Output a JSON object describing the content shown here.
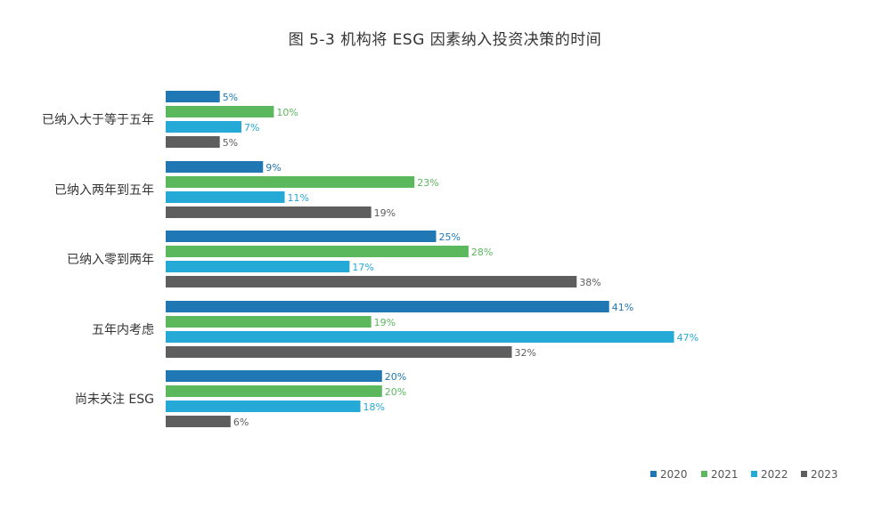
{
  "chart_data": {
    "type": "bar",
    "orientation": "horizontal",
    "title": "图 5-3 机构将 ESG 因素纳入投资决策的时间",
    "categories": [
      "已纳入大于等于五年",
      "已纳入两年到五年",
      "已纳入零到两年",
      "五年内考虑",
      "尚未关注 ESG"
    ],
    "series": [
      {
        "name": "2020",
        "color": "#1f77b4",
        "label_color": "#1f77b4",
        "values": [
          5,
          9,
          25,
          41,
          20
        ],
        "labels": [
          "5%",
          "9%",
          "25%",
          "41%",
          "20%"
        ]
      },
      {
        "name": "2021",
        "color": "#5cb85c",
        "label_color": "#5cb85c",
        "values": [
          10,
          23,
          28,
          19,
          20
        ],
        "labels": [
          "10%",
          "23%",
          "28%",
          "19%",
          "20%"
        ]
      },
      {
        "name": "2022",
        "color": "#25a9d6",
        "label_color": "#25a9d6",
        "values": [
          7,
          11,
          17,
          47,
          18
        ],
        "labels": [
          "7%",
          "11%",
          "17%",
          "47%",
          "18%"
        ]
      },
      {
        "name": "2023",
        "color": "#5e5e5e",
        "label_color": "#5e5e5e",
        "values": [
          5,
          19,
          38,
          32,
          6
        ],
        "labels": [
          "5%",
          "19%",
          "38%",
          "32%",
          "6%"
        ]
      }
    ],
    "xlim": [
      0,
      50
    ],
    "grid": false,
    "legend": "bottom-right"
  }
}
